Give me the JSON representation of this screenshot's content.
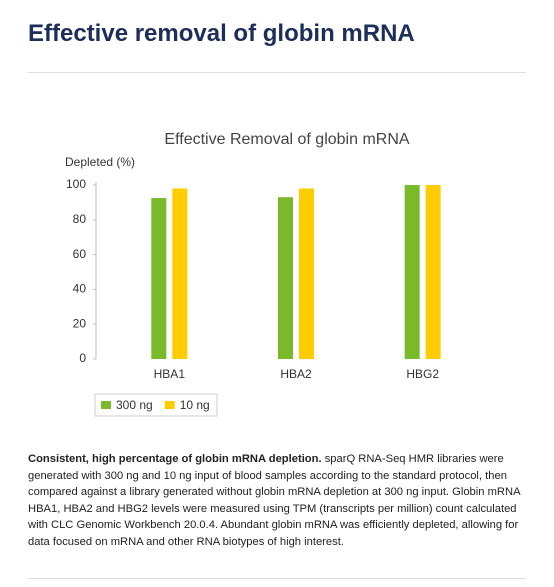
{
  "header": {
    "title": "Effective removal of globin mRNA"
  },
  "chart_data": {
    "type": "bar",
    "title": "Effective Removal of globin mRNA",
    "y_label": "Depleted (%)",
    "categories": [
      "HBA1",
      "HBA2",
      "HBG2"
    ],
    "series": [
      {
        "name": "300 ng",
        "color": "#7ab929",
        "values": [
          92.5,
          93,
          100
        ]
      },
      {
        "name": "10 ng",
        "color": "#ffcc00",
        "values": [
          98,
          98,
          100
        ]
      }
    ],
    "ylim": [
      0,
      100
    ],
    "yticks": [
      0,
      20,
      40,
      60,
      80,
      100
    ],
    "grid": false,
    "legend": "bottom-left"
  },
  "caption": {
    "lead": "Consistent, high percentage of globin mRNA depletion.",
    "text": "sparQ RNA-Seq HMR libraries were generated with 300 ng and 10 ng input of blood samples according to the standard protocol, then compared against a library generated without globin mRNA depletion at 300 ng input. Globin mRNA HBA1, HBA2 and HBG2 levels were measured using TPM (transcripts per million) count calculated with CLC Genomic Workbench 20.0.4. Abundant globin mRNA was efficiently depleted, allowing for data focused on mRNA and other RNA biotypes of high interest."
  }
}
